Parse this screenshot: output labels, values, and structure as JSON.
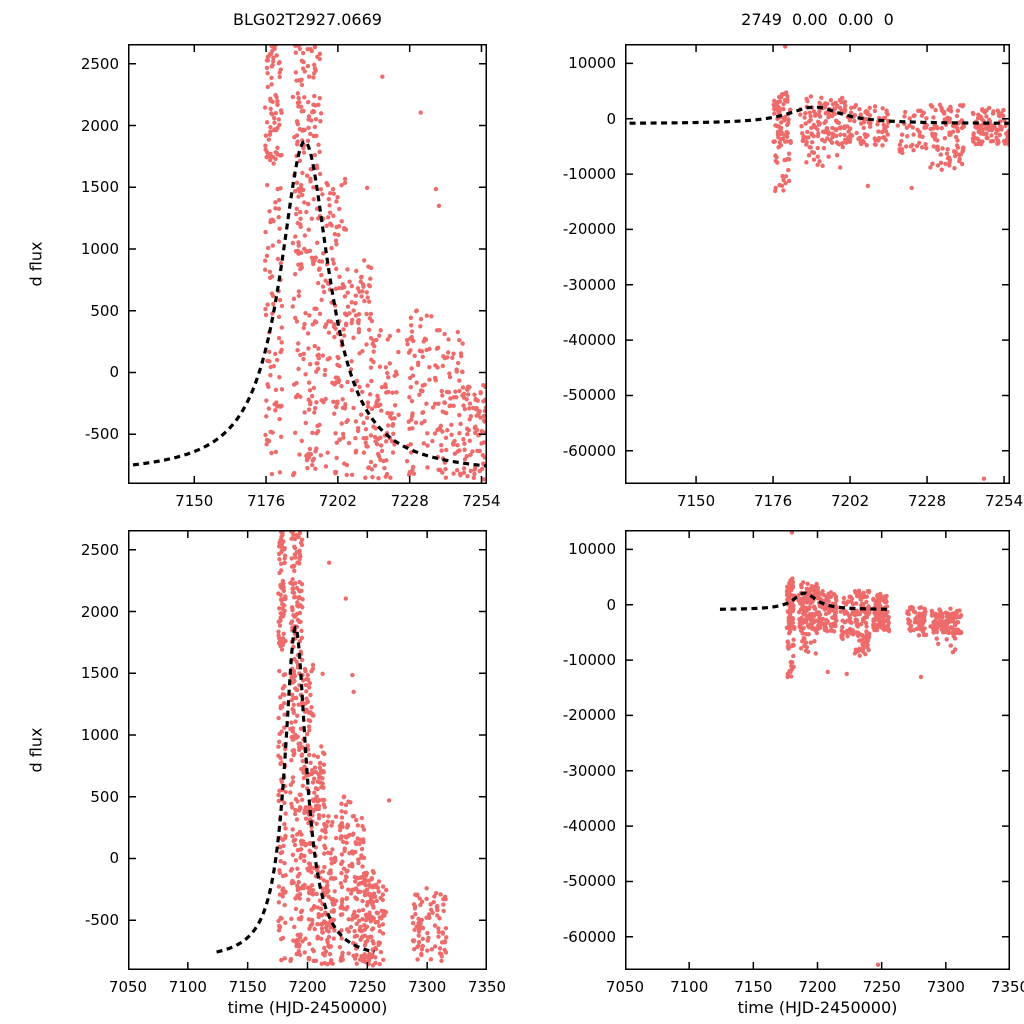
{
  "figure": {
    "background": "#ffffff",
    "point_color": "#ee6b6b",
    "model_color": "#000000"
  },
  "chart_data": {
    "type": "scatter",
    "grid": false,
    "seed": 42,
    "panels": [
      {
        "id": "top-left",
        "title": "BLG02T2927.0669",
        "xlabel": "",
        "ylabel": "d flux",
        "dataset": "left",
        "model": "left",
        "xlim": [
          7126,
          7256
        ],
        "ylim": [
          -903,
          2660
        ],
        "xticks": [
          7150,
          7176,
          7202,
          7228,
          7254
        ],
        "yticks": [
          2500,
          2000,
          1500,
          1000,
          500,
          0,
          -500
        ]
      },
      {
        "id": "top-right",
        "title": "2749  0.00  0.00  0",
        "xlabel": "",
        "ylabel": "",
        "dataset": "right",
        "model": "right",
        "xlim": [
          7126,
          7256
        ],
        "ylim": [
          -66000,
          13500
        ],
        "xticks": [
          7150,
          7176,
          7202,
          7228,
          7254
        ],
        "yticks": [
          10000,
          0,
          -10000,
          -20000,
          -30000,
          -40000,
          -50000,
          -60000
        ]
      },
      {
        "id": "bottom-left",
        "title": "",
        "xlabel": "time (HJD-2450000)",
        "ylabel": "d flux",
        "dataset": "left",
        "model": "left",
        "xlim": [
          7050,
          7350
        ],
        "ylim": [
          -903,
          2660
        ],
        "xticks": [
          7050,
          7100,
          7150,
          7200,
          7250,
          7300,
          7350
        ],
        "yticks": [
          2500,
          2000,
          1500,
          1000,
          500,
          0,
          -500
        ]
      },
      {
        "id": "bottom-right",
        "title": "",
        "xlabel": "time (HJD-2450000)",
        "ylabel": "",
        "dataset": "right",
        "model": "right",
        "xlim": [
          7050,
          7350
        ],
        "ylim": [
          -66000,
          13500
        ],
        "xticks": [
          7050,
          7100,
          7150,
          7200,
          7250,
          7300,
          7350
        ],
        "yticks": [
          10000,
          0,
          -10000,
          -20000,
          -30000,
          -40000,
          -50000,
          -60000
        ]
      }
    ],
    "models": {
      "left": {
        "shape": "lorentzian",
        "t0": 7190,
        "width": 11,
        "baseline": -830,
        "amplitude": 2700,
        "t_range": [
          7124,
          7256
        ]
      },
      "right": {
        "shape": "lorentzian",
        "t0": 7190,
        "width": 11,
        "baseline": -900,
        "amplitude": 3000,
        "t_range": [
          7124,
          7256
        ]
      }
    },
    "datasets": {
      "left": {
        "clusters": [
          [
            7175.6,
            7181.8,
            -860,
            2660,
            115
          ],
          [
            7176.0,
            7181.0,
            1600,
            2660,
            40
          ],
          [
            7185.5,
            7196.0,
            -860,
            2660,
            170
          ],
          [
            7186.5,
            7194.5,
            900,
            2660,
            55
          ],
          [
            7196.0,
            7205.0,
            -860,
            1650,
            120
          ],
          [
            7205.0,
            7214.5,
            -860,
            950,
            95
          ],
          [
            7214.5,
            7224.0,
            -860,
            350,
            75
          ],
          [
            7227.0,
            7236.5,
            -860,
            520,
            70
          ],
          [
            7237.0,
            7248.0,
            -860,
            420,
            95
          ],
          [
            7248.0,
            7256.0,
            -870,
            -80,
            65
          ],
          [
            7256.5,
            7266.0,
            -870,
            -180,
            40
          ],
          [
            7287.0,
            7296.5,
            -860,
            -280,
            38
          ],
          [
            7299.5,
            7316.0,
            -830,
            -240,
            48
          ]
        ],
        "outliers": [
          [
            7212.6,
            1495
          ],
          [
            7218.1,
            2395
          ],
          [
            7232.0,
            2105
          ],
          [
            7237.5,
            1485
          ],
          [
            7238.6,
            1350
          ],
          [
            7268.2,
            470
          ]
        ]
      },
      "right": {
        "clusters": [
          [
            7176.0,
            7182.0,
            -4500,
            4800,
            70
          ],
          [
            7176.5,
            7181.5,
            -13200,
            -4500,
            22
          ],
          [
            7185.0,
            7200.5,
            -5200,
            4200,
            120
          ],
          [
            7186.0,
            7199.0,
            -9200,
            -5200,
            14
          ],
          [
            7200.5,
            7215.0,
            -4800,
            2600,
            85
          ],
          [
            7218.0,
            7228.0,
            -6200,
            1600,
            42
          ],
          [
            7229.0,
            7240.5,
            -9700,
            2600,
            95
          ],
          [
            7243.0,
            7256.0,
            -4800,
            2100,
            100
          ],
          [
            7270.0,
            7285.5,
            -5600,
            -400,
            55
          ],
          [
            7288.0,
            7312.5,
            -5200,
            -700,
            120
          ],
          [
            7292.0,
            7308.0,
            -8800,
            -5200,
            8
          ]
        ],
        "outliers": [
          [
            7180.1,
            13050
          ],
          [
            7208.0,
            -12150
          ],
          [
            7222.8,
            -12500
          ],
          [
            7247.2,
            -65050
          ],
          [
            7280.6,
            -13050
          ]
        ]
      }
    }
  }
}
